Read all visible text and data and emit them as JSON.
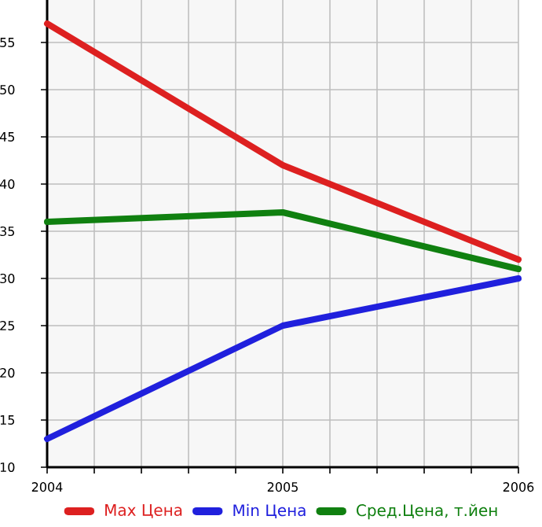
{
  "chart_data": {
    "type": "line",
    "x": [
      2004,
      2005,
      2006
    ],
    "series": [
      {
        "name": "Max Цена",
        "color": "#dd2020",
        "values": [
          57,
          42,
          32
        ]
      },
      {
        "name": "Min Цена",
        "color": "#2020dd",
        "values": [
          13,
          25,
          30
        ]
      },
      {
        "name": "Сред.Цена, т.йен",
        "color": "#108010",
        "values": [
          36,
          37,
          31
        ]
      }
    ],
    "xlim": [
      2004,
      2006
    ],
    "xticks": [
      2004,
      {
        "value": 2004.2,
        "label": null
      },
      {
        "value": 2004.4,
        "label": null
      },
      {
        "value": 2004.6,
        "label": null
      },
      {
        "value": 2004.8,
        "label": null
      },
      2005,
      {
        "value": 2005.2,
        "label": null
      },
      {
        "value": 2005.4,
        "label": null
      },
      {
        "value": 2005.6,
        "label": null
      },
      {
        "value": 2005.8,
        "label": null
      },
      2006
    ],
    "ylim": [
      10,
      59.5
    ],
    "yticks": [
      10,
      15,
      20,
      25,
      30,
      35,
      40,
      45,
      50,
      55
    ],
    "grid": true,
    "legend": "bottom",
    "marker": "none",
    "line_style": "solid"
  }
}
